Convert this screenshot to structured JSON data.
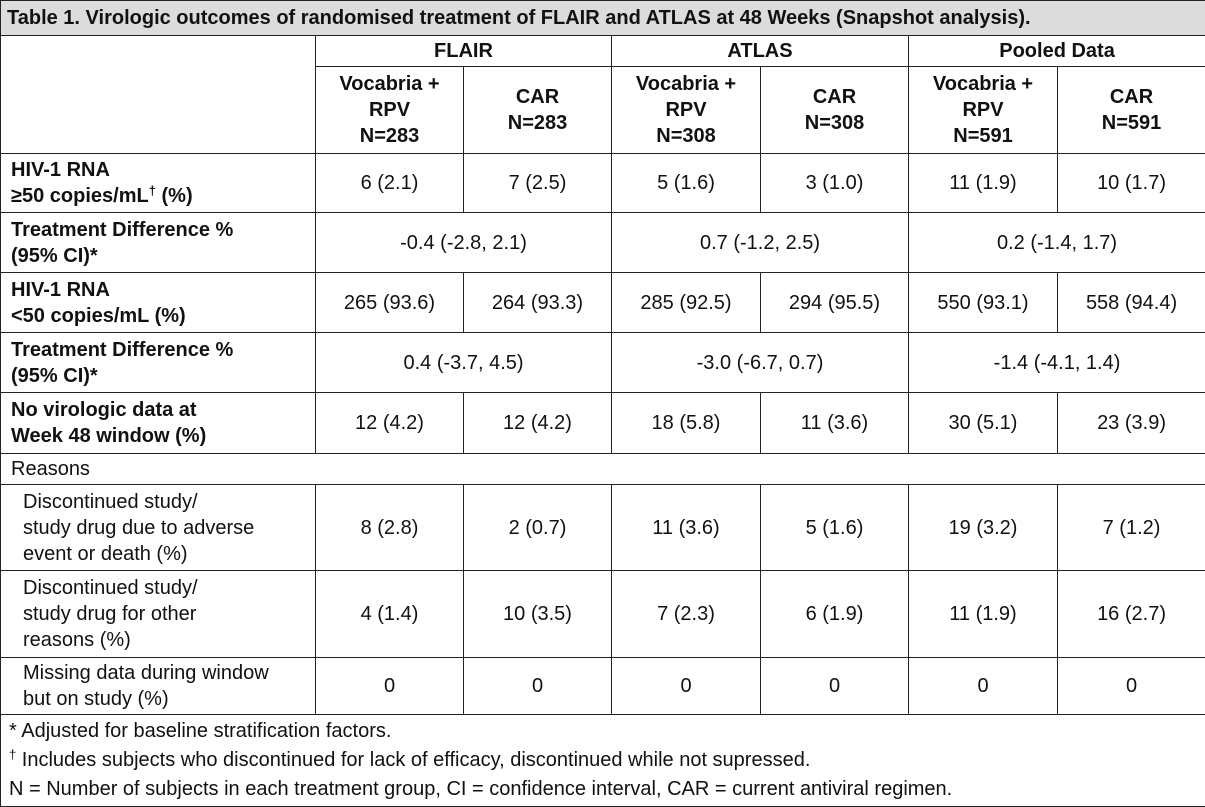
{
  "table": {
    "title": "Table 1. Virologic outcomes of randomised treatment of FLAIR and ATLAS at 48 Weeks (Snapshot analysis).",
    "groups": [
      "FLAIR",
      "ATLAS",
      "Pooled Data"
    ],
    "subheaders": [
      [
        "Vocabria +",
        "RPV",
        "N=283"
      ],
      [
        "CAR",
        "N=283"
      ],
      [
        "Vocabria +",
        "RPV",
        "N=308"
      ],
      [
        "CAR",
        "N=308"
      ],
      [
        "Vocabria +",
        "RPV",
        "N=591"
      ],
      [
        "CAR",
        "N=591"
      ]
    ],
    "rows": [
      {
        "label": [
          "HIV-1 RNA",
          {
            "text": "≥50 copies/mL",
            "sup": "†",
            "after": " (%)"
          }
        ],
        "cells": [
          "6 (2.1)",
          "7 (2.5)",
          "5 (1.6)",
          "3 (1.0)",
          "11 (1.9)",
          "10 (1.7)"
        ]
      },
      {
        "label": [
          "Treatment Difference %",
          "(95% CI)*"
        ],
        "cells": [
          "-0.4 (-2.8, 2.1)",
          "0.7 (-1.2, 2.5)",
          "0.2 (-1.4, 1.7)"
        ]
      },
      {
        "label": [
          "HIV-1 RNA",
          "<50 copies/mL (%)"
        ],
        "cells": [
          "265 (93.6)",
          "264 (93.3)",
          "285 (92.5)",
          "294 (95.5)",
          "550 (93.1)",
          "558 (94.4)"
        ]
      },
      {
        "label": [
          "Treatment Difference %",
          "(95% CI)*"
        ],
        "cells": [
          "0.4 (-3.7, 4.5)",
          "-3.0 (-6.7, 0.7)",
          "-1.4 (-4.1, 1.4)"
        ]
      },
      {
        "label": [
          "No virologic data at",
          "Week 48 window (%)"
        ],
        "cells": [
          "12 (4.2)",
          "12 (4.2)",
          "18 (5.8)",
          "11 (3.6)",
          "30 (5.1)",
          "23 (3.9)"
        ]
      }
    ],
    "reasons": {
      "title": "Reasons",
      "rows": [
        {
          "label": [
            "Discontinued study/",
            "study drug due to adverse",
            "event or death (%)"
          ],
          "cells": [
            "8 (2.8)",
            "2 (0.7)",
            "11 (3.6)",
            "5 (1.6)",
            "19 (3.2)",
            "7 (1.2)"
          ]
        },
        {
          "label": [
            "Discontinued study/",
            "study drug for other",
            "reasons (%)"
          ],
          "cells": [
            "4 (1.4)",
            "10 (3.5)",
            "7 (2.3)",
            "6 (1.9)",
            "11 (1.9)",
            "16 (2.7)"
          ]
        },
        {
          "label": [
            "Missing data during window",
            "but on study (%)"
          ],
          "cells": [
            "0",
            "0",
            "0",
            "0",
            "0",
            "0"
          ]
        }
      ]
    },
    "footnotes": [
      "* Adjusted for baseline stratification factors.",
      {
        "sup": "†",
        "text": " Includes subjects who discontinued for lack of efficacy, discontinued while not supressed."
      },
      "N = Number of subjects in each treatment group, CI = confidence interval, CAR = current antiviral regimen."
    ]
  }
}
